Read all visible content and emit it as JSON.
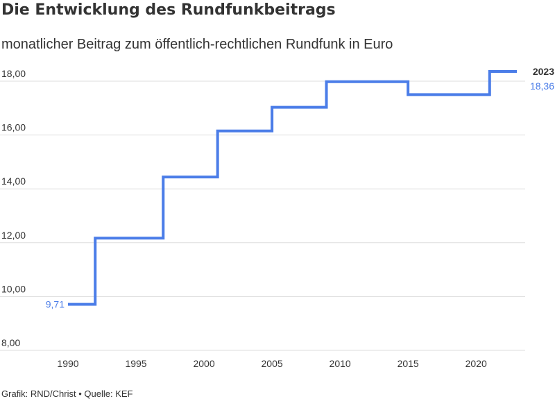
{
  "title": "Die Entwicklung des Rundfunkbeitrags",
  "subtitle": "monatlicher Beitrag zum öffentlich-rechtlichen Rundfunk in Euro",
  "footer": "Grafik: RND/Christ • Quelle: KEF",
  "colors": {
    "line": "#4b7de8",
    "grid": "#dddddd",
    "text": "#333333"
  },
  "chart_data": {
    "type": "line",
    "step": true,
    "x": [
      1990,
      1992,
      1997,
      2001,
      2005,
      2009,
      2015,
      2021,
      2023
    ],
    "values": [
      9.71,
      12.17,
      14.44,
      16.15,
      17.03,
      17.98,
      17.5,
      18.36,
      18.36
    ],
    "xlim": [
      1990,
      2023
    ],
    "ylim": [
      8,
      18
    ],
    "y_ticks": [
      8,
      10,
      12,
      14,
      16,
      18
    ],
    "y_tick_labels": [
      "8,00",
      "10,00",
      "12,00",
      "14,00",
      "16,00",
      "18,00"
    ],
    "x_ticks": [
      1990,
      1995,
      2000,
      2005,
      2010,
      2015,
      2020
    ],
    "x_tick_labels": [
      "1990",
      "1995",
      "2000",
      "2005",
      "2010",
      "2015",
      "2020"
    ],
    "grid": true,
    "annotations": {
      "start_value": "9,71",
      "end_year": "2023",
      "end_value": "18,36"
    }
  }
}
